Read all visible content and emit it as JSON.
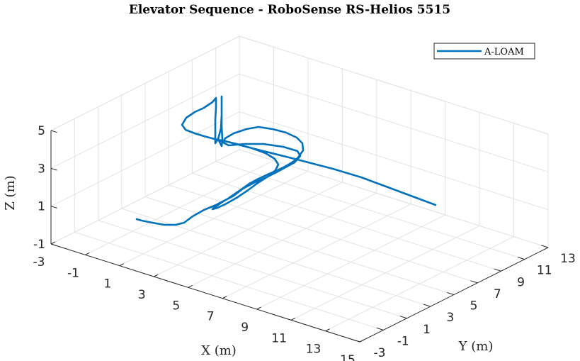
{
  "chart_data": {
    "type": "line",
    "title": "Elevator Sequence - RoboSense RS-Helios 5515",
    "xlabel": "X (m)",
    "ylabel": "Y (m)",
    "zlabel": "Z (m)",
    "xlim": [
      -3,
      15
    ],
    "ylim": [
      -3,
      13
    ],
    "zlim": [
      -1,
      5
    ],
    "x_ticks": [
      "-3",
      "-1",
      "1",
      "3",
      "5",
      "7",
      "9",
      "11",
      "13",
      "15"
    ],
    "y_ticks": [
      "-3",
      "-1",
      "1",
      "3",
      "5",
      "7",
      "9",
      "11",
      "13"
    ],
    "z_ticks": [
      "-1",
      "1",
      "3",
      "5"
    ],
    "grid": true,
    "legend_position": "top-right",
    "line_color": "#0072BD",
    "series": [
      {
        "name": "A-LOAM"
      }
    ]
  }
}
